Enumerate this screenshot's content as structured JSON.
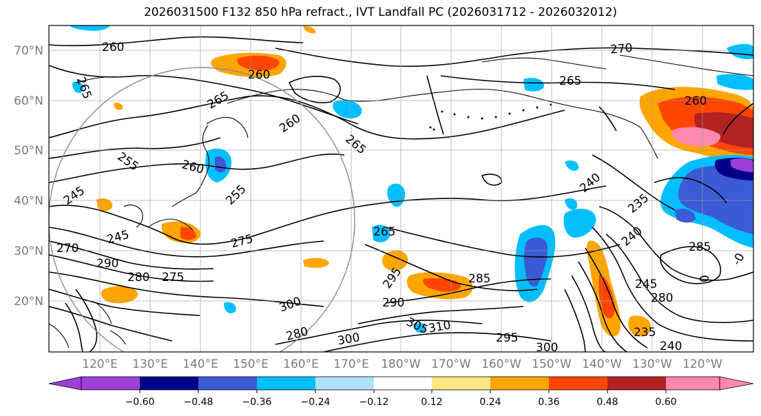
{
  "title": "2026031500 F132 850 hPa refract., IVT Landfall PC (2026031712 - 2026032012)",
  "map": {
    "lat_labels": [
      "70°N",
      "60°N",
      "50°N",
      "40°N",
      "30°N",
      "20°N"
    ],
    "lon_labels": [
      "120°E",
      "130°E",
      "140°E",
      "150°E",
      "160°E",
      "170°E",
      "180°W",
      "170°W",
      "160°W",
      "150°W",
      "140°W",
      "130°W",
      "120°W"
    ],
    "contour_labels": [
      "260",
      "265",
      "260",
      "265",
      "260",
      "265",
      "255",
      "260",
      "255",
      "245",
      "245",
      "270",
      "290",
      "275",
      "280",
      "275",
      "265",
      "270",
      "265",
      "260",
      "240",
      "235",
      "240",
      "245",
      "285",
      "280",
      "285",
      "290",
      "295",
      "300",
      "305",
      "310",
      "280",
      "300",
      "295",
      "300",
      "235",
      "240",
      "0",
      "-0"
    ],
    "label_color": "#7a7a7a",
    "contour_color": "#000000",
    "circle_color": "#8c8c8c"
  },
  "colorbar": {
    "ticks": [
      "−0.60",
      "−0.48",
      "−0.36",
      "−0.24",
      "−0.12",
      "0.12",
      "0.24",
      "0.36",
      "0.48",
      "0.60"
    ],
    "colors": [
      "#9b3fd6",
      "#00008b",
      "#3b5bd4",
      "#00bfff",
      "#b0e2ff",
      "#ffffff",
      "#ffe680",
      "#ffa500",
      "#ff4500",
      "#b22222",
      "#ff88b0"
    ]
  }
}
